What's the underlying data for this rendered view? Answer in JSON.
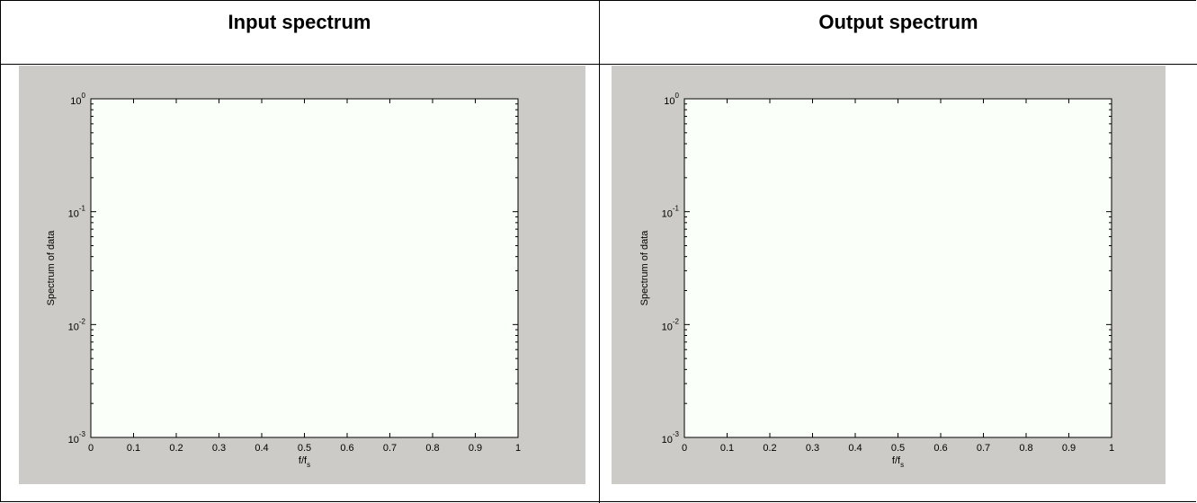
{
  "headers": {
    "left": "Input spectrum",
    "right": "Output spectrum"
  },
  "colors": {
    "figure_bg": "#cccbc7",
    "axes_bg": "#fafffa"
  },
  "chart_data": [
    {
      "type": "line",
      "title": "",
      "xlabel": "f/f",
      "xlabel_sub": "s",
      "ylabel": "Spectrum of data",
      "xlim": [
        0,
        1
      ],
      "ylim": [
        0.001,
        1
      ],
      "yscale": "log",
      "x_ticks": [
        "0",
        "0.1",
        "0.2",
        "0.3",
        "0.4",
        "0.5",
        "0.6",
        "0.7",
        "0.8",
        "0.9",
        "1"
      ],
      "y_ticks": [
        {
          "base": "10",
          "exp": "0"
        },
        {
          "base": "10",
          "exp": "-1"
        },
        {
          "base": "10",
          "exp": "-2"
        },
        {
          "base": "10",
          "exp": "-3"
        }
      ],
      "grid": false,
      "series": []
    },
    {
      "type": "line",
      "title": "",
      "xlabel": "f/f",
      "xlabel_sub": "s",
      "ylabel": "Spectrum of data",
      "xlim": [
        0,
        1
      ],
      "ylim": [
        0.001,
        1
      ],
      "yscale": "log",
      "x_ticks": [
        "0",
        "0.1",
        "0.2",
        "0.3",
        "0.4",
        "0.5",
        "0.6",
        "0.7",
        "0.8",
        "0.9",
        "1"
      ],
      "y_ticks": [
        {
          "base": "10",
          "exp": "0"
        },
        {
          "base": "10",
          "exp": "-1"
        },
        {
          "base": "10",
          "exp": "-2"
        },
        {
          "base": "10",
          "exp": "-3"
        }
      ],
      "grid": false,
      "series": []
    }
  ]
}
